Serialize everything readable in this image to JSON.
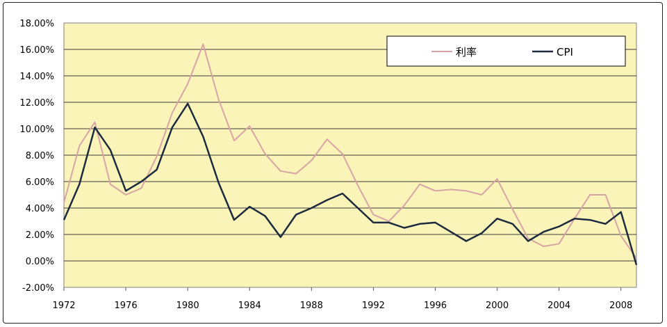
{
  "chart_data": {
    "type": "line",
    "title": "",
    "xlabel": "",
    "ylabel": "",
    "x": [
      1972,
      1973,
      1974,
      1975,
      1976,
      1977,
      1978,
      1979,
      1980,
      1981,
      1982,
      1983,
      1984,
      1985,
      1986,
      1987,
      1988,
      1989,
      1990,
      1991,
      1992,
      1993,
      1994,
      1995,
      1996,
      1997,
      1998,
      1999,
      2000,
      2001,
      2002,
      2003,
      2004,
      2005,
      2006,
      2007,
      2008,
      2009
    ],
    "xlim": [
      1972,
      2009
    ],
    "x_ticks": [
      "1972",
      "1976",
      "1980",
      "1984",
      "1988",
      "1992",
      "1996",
      "2000",
      "2004",
      "2008"
    ],
    "ylim": [
      -2.0,
      18.0
    ],
    "y_ticks": [
      "-2.00%",
      "0.00%",
      "2.00%",
      "4.00%",
      "6.00%",
      "8.00%",
      "10.00%",
      "12.00%",
      "14.00%",
      "16.00%",
      "18.00%"
    ],
    "grid": true,
    "legend_position": "top-right",
    "background_color": "#fbf4b9",
    "series": [
      {
        "name": "利率",
        "color": "#d7a3a6",
        "values": [
          4.4,
          8.7,
          10.5,
          5.8,
          5.0,
          5.5,
          7.9,
          11.2,
          13.4,
          16.4,
          12.2,
          9.1,
          10.2,
          8.1,
          6.8,
          6.6,
          7.6,
          9.2,
          8.1,
          5.7,
          3.5,
          3.0,
          4.2,
          5.8,
          5.3,
          5.4,
          5.3,
          5.0,
          6.2,
          3.9,
          1.7,
          1.1,
          1.3,
          3.2,
          5.0,
          5.0,
          1.9,
          0.2
        ]
      },
      {
        "name": "CPI",
        "color": "#1b2a3e",
        "values": [
          3.1,
          5.8,
          10.1,
          8.4,
          5.3,
          6.0,
          6.9,
          10.1,
          11.9,
          9.4,
          5.9,
          3.1,
          4.1,
          3.4,
          1.8,
          3.5,
          4.0,
          4.6,
          5.1,
          4.0,
          2.9,
          2.9,
          2.5,
          2.8,
          2.9,
          2.2,
          1.5,
          2.1,
          3.2,
          2.8,
          1.5,
          2.2,
          2.6,
          3.2,
          3.1,
          2.8,
          3.7,
          -0.3
        ]
      }
    ]
  }
}
